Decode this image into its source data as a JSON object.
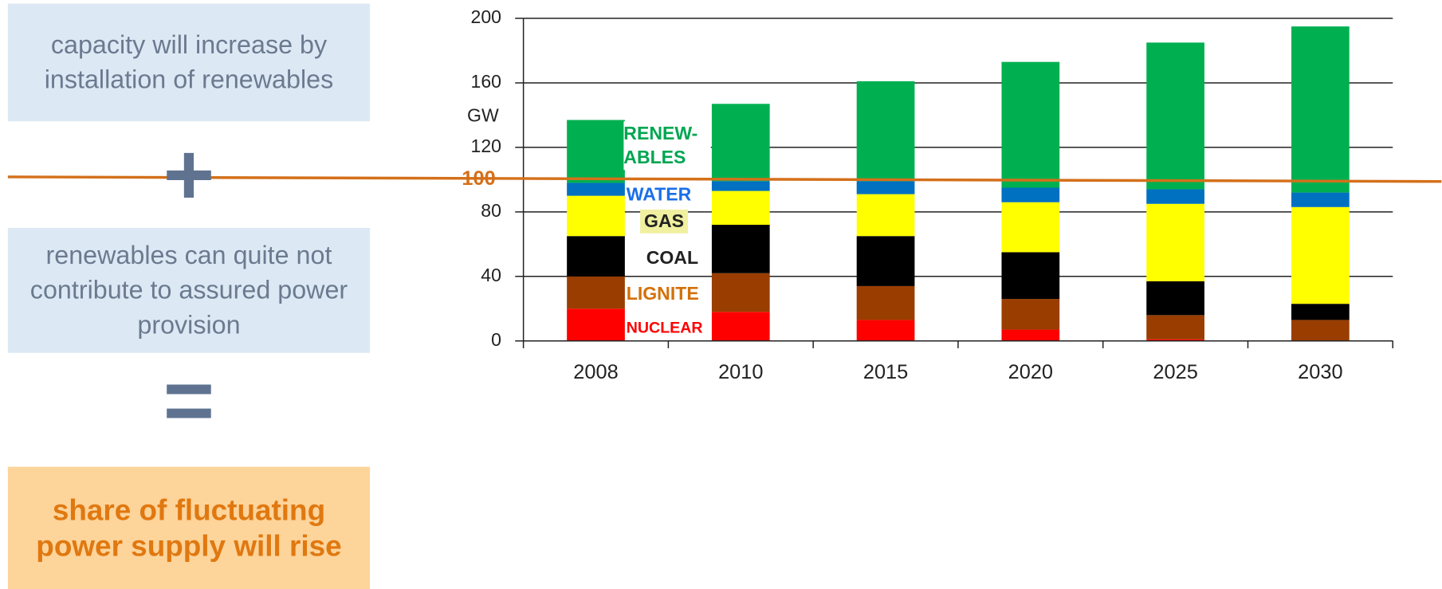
{
  "left_panel": {
    "statement_1": "capacity will increase by installation of renewables",
    "operator_1": "+",
    "statement_2": "renewables can quite not contribute to assured power provision",
    "operator_2": "=",
    "conclusion": "share of fluctuating power supply will rise"
  },
  "chart_data": {
    "type": "stacked_bar",
    "y_label": "GW",
    "categories": [
      "2008",
      "2010",
      "2015",
      "2020",
      "2025",
      "2030"
    ],
    "series": [
      {
        "name": "NUCLEAR",
        "color": "#ff0000",
        "label_color": "#ff0000",
        "values": [
          20,
          18,
          13,
          7,
          1,
          0
        ]
      },
      {
        "name": "LIGNITE",
        "color": "#993d00",
        "label_color": "#d4700a",
        "values": [
          20,
          24,
          21,
          19,
          15,
          13
        ]
      },
      {
        "name": "COAL",
        "color": "#000000",
        "label_color": "#222222",
        "values": [
          25,
          30,
          31,
          29,
          21,
          10
        ]
      },
      {
        "name": "GAS",
        "color": "#ffff00",
        "label_color": "#222222",
        "values": [
          25,
          21,
          26,
          31,
          48,
          60
        ]
      },
      {
        "name": "WATER",
        "color": "#0070c0",
        "label_color": "#1a6fe8",
        "values": [
          8,
          6,
          8,
          9,
          9,
          9
        ]
      },
      {
        "name": "RENEW-\nABLES",
        "color": "#00b050",
        "label_color": "#00a651",
        "values": [
          39,
          48,
          62,
          78,
          91,
          103
        ]
      }
    ],
    "ylim": [
      0,
      200
    ],
    "yticks": [
      0,
      40,
      80,
      120,
      160,
      200
    ],
    "grid": true,
    "reference_line": 100,
    "reference_color": "#d4701a"
  }
}
